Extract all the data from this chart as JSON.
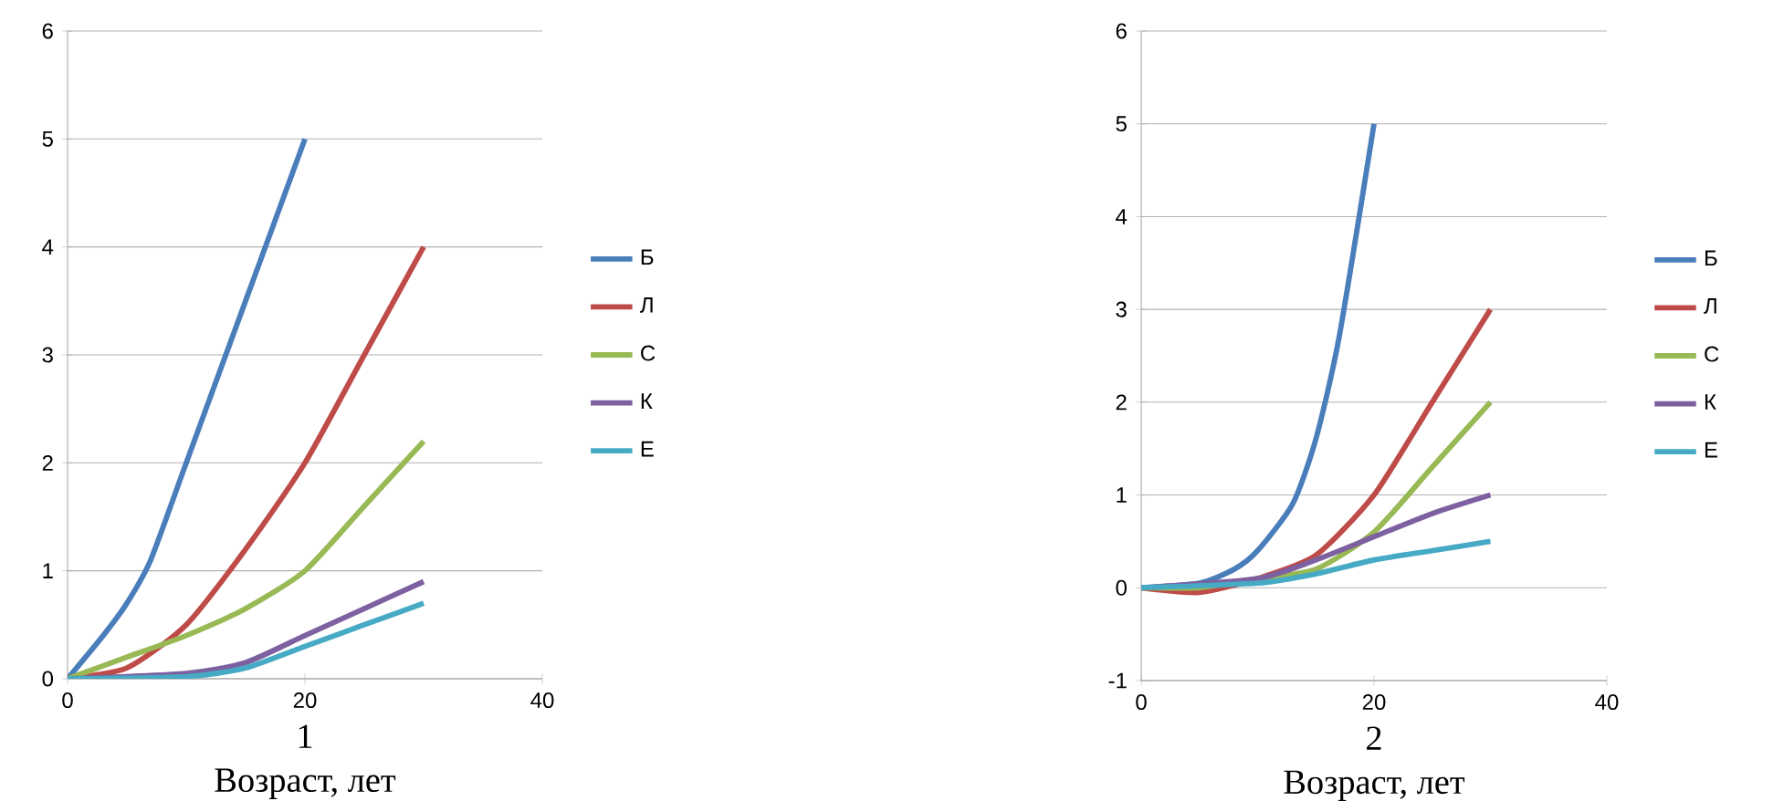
{
  "chart_data": [
    {
      "type": "line",
      "subtitle": "1",
      "xlabel": "Возраст, лет",
      "xlim": [
        0,
        40
      ],
      "xticks": [
        0,
        20,
        40
      ],
      "ylim": [
        0,
        6
      ],
      "yticks": [
        0,
        1,
        2,
        3,
        4,
        5,
        6
      ],
      "grid": "y",
      "legend": "right",
      "line_style": "solid",
      "marker": "none",
      "series": [
        {
          "name": "Б",
          "color": "#4a7ebb",
          "x": [
            0,
            3,
            5,
            7,
            10,
            15,
            20
          ],
          "values": [
            0,
            0.4,
            0.7,
            1.1,
            2,
            3.5,
            5
          ]
        },
        {
          "name": "Л",
          "color": "#be4b48",
          "x": [
            0,
            5,
            10,
            15,
            20,
            25,
            30
          ],
          "values": [
            0,
            0.1,
            0.5,
            1.2,
            2,
            3,
            4
          ]
        },
        {
          "name": "С",
          "color": "#98b954",
          "x": [
            0,
            5,
            10,
            15,
            20,
            25,
            30
          ],
          "values": [
            0,
            0.2,
            0.4,
            0.65,
            1,
            1.6,
            2.2
          ]
        },
        {
          "name": "К",
          "color": "#7d60a0",
          "x": [
            0,
            10,
            15,
            20,
            25,
            30
          ],
          "values": [
            0,
            0.05,
            0.15,
            0.4,
            0.65,
            0.9
          ]
        },
        {
          "name": "Е",
          "color": "#46aac5",
          "x": [
            0,
            10,
            15,
            20,
            25,
            30
          ],
          "values": [
            0,
            0.02,
            0.1,
            0.3,
            0.5,
            0.7
          ]
        }
      ]
    },
    {
      "type": "line",
      "subtitle": "2",
      "xlabel": "Возраст, лет",
      "xlim": [
        0,
        40
      ],
      "xticks": [
        0,
        20,
        40
      ],
      "ylim": [
        -1,
        6
      ],
      "yticks": [
        -1,
        0,
        1,
        2,
        3,
        4,
        5,
        6
      ],
      "grid": "y",
      "legend": "right",
      "line_style": "solid",
      "marker": "none",
      "series": [
        {
          "name": "Б",
          "color": "#4a7ebb",
          "x": [
            0,
            5,
            8,
            10,
            13,
            15,
            17,
            20
          ],
          "values": [
            0,
            0.05,
            0.2,
            0.4,
            0.9,
            1.6,
            2.7,
            5
          ]
        },
        {
          "name": "Л",
          "color": "#be4b48",
          "x": [
            0,
            5,
            10,
            15,
            20,
            25,
            30
          ],
          "values": [
            0,
            -0.05,
            0.1,
            0.35,
            1,
            2,
            3
          ]
        },
        {
          "name": "С",
          "color": "#98b954",
          "x": [
            0,
            5,
            10,
            15,
            20,
            25,
            30
          ],
          "values": [
            0,
            0,
            0.1,
            0.2,
            0.6,
            1.3,
            2
          ]
        },
        {
          "name": "К",
          "color": "#7d60a0",
          "x": [
            0,
            10,
            15,
            20,
            25,
            30
          ],
          "values": [
            0,
            0.1,
            0.3,
            0.55,
            0.8,
            1
          ]
        },
        {
          "name": "Е",
          "color": "#46aac5",
          "x": [
            0,
            10,
            15,
            20,
            25,
            30
          ],
          "values": [
            0,
            0.05,
            0.15,
            0.3,
            0.4,
            0.5
          ]
        }
      ]
    }
  ]
}
